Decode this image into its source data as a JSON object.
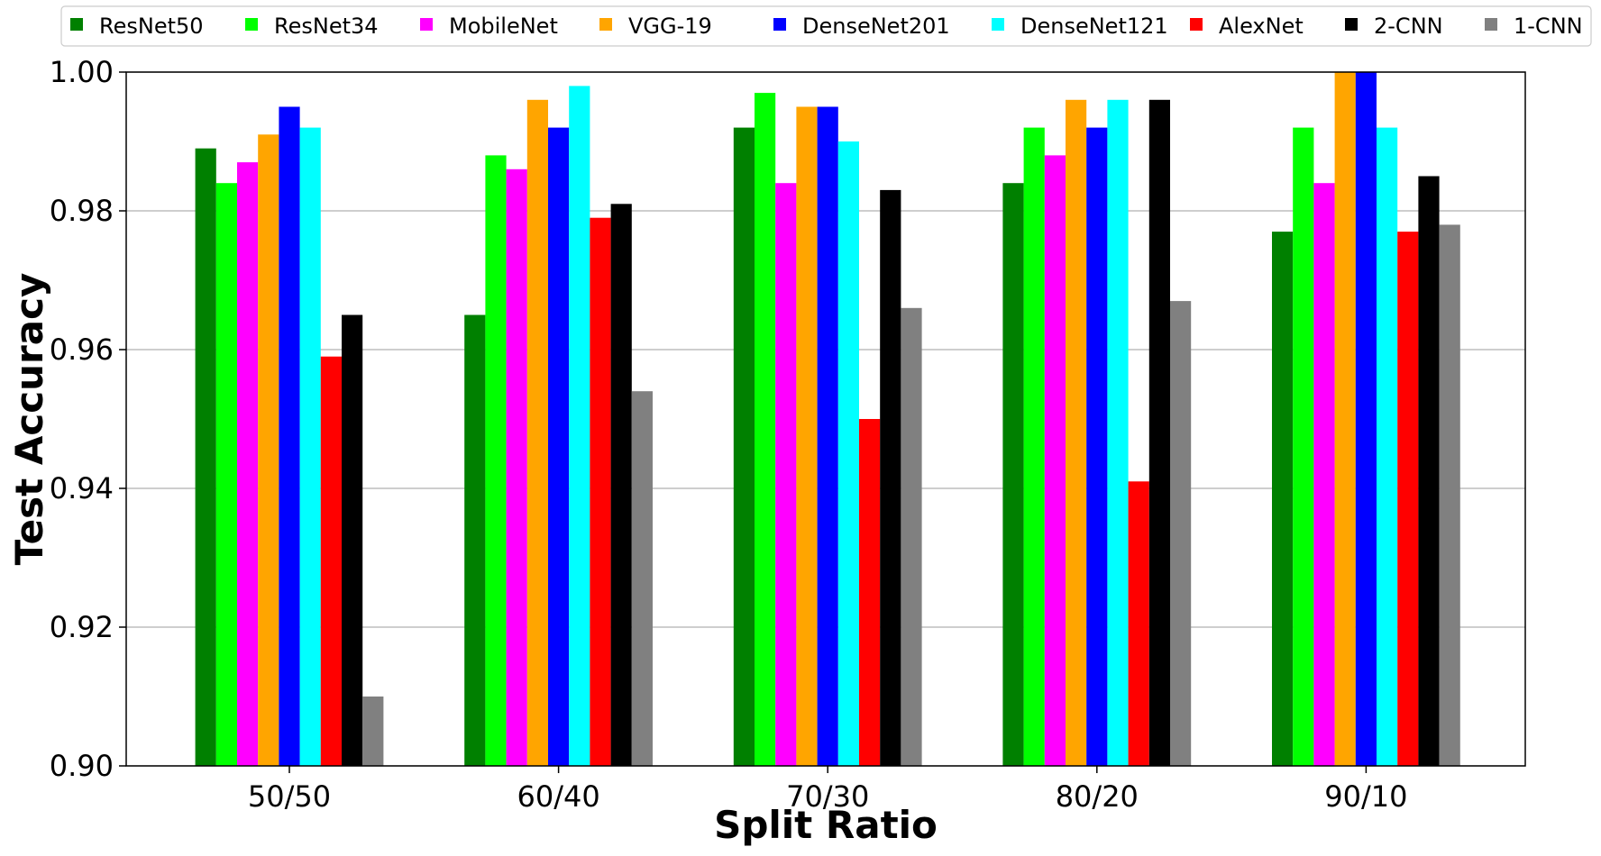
{
  "chart_data": {
    "type": "bar",
    "xlabel": "Split Ratio",
    "ylabel": "Test Accuracy",
    "ylim": [
      0.9,
      1.0
    ],
    "yticks": [
      "0.90",
      "0.92",
      "0.94",
      "0.96",
      "0.98",
      "1.00"
    ],
    "ytick_values": [
      0.9,
      0.92,
      0.94,
      0.96,
      0.98,
      1.0
    ],
    "grid": "horizontal",
    "legend_position": "top",
    "categories": [
      "50/50",
      "60/40",
      "70/30",
      "80/20",
      "90/10"
    ],
    "series": [
      {
        "name": "ResNet50",
        "color": "#008000",
        "values": [
          0.989,
          0.965,
          0.992,
          0.984,
          0.977
        ]
      },
      {
        "name": "ResNet34",
        "color": "#00ff00",
        "values": [
          0.984,
          0.988,
          0.997,
          0.992,
          0.992
        ]
      },
      {
        "name": "MobileNet",
        "color": "#ff00ff",
        "values": [
          0.987,
          0.986,
          0.984,
          0.988,
          0.984
        ]
      },
      {
        "name": "VGG-19",
        "color": "#ffa500",
        "values": [
          0.991,
          0.996,
          0.995,
          0.996,
          1.0
        ]
      },
      {
        "name": "DenseNet201",
        "color": "#0000ff",
        "values": [
          0.995,
          0.992,
          0.995,
          0.992,
          1.0
        ]
      },
      {
        "name": "DenseNet121",
        "color": "#00ffff",
        "values": [
          0.992,
          0.998,
          0.99,
          0.996,
          0.992
        ]
      },
      {
        "name": "AlexNet",
        "color": "#ff0000",
        "values": [
          0.959,
          0.979,
          0.95,
          0.941,
          0.977
        ]
      },
      {
        "name": "2-CNN",
        "color": "#000000",
        "values": [
          0.965,
          0.981,
          0.983,
          0.996,
          0.985
        ]
      },
      {
        "name": "1-CNN",
        "color": "#808080",
        "values": [
          0.91,
          0.954,
          0.966,
          0.967,
          0.978
        ]
      }
    ]
  }
}
